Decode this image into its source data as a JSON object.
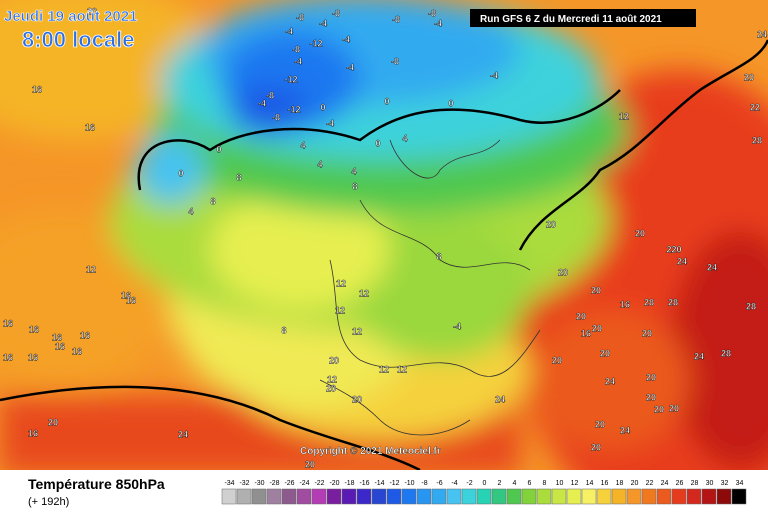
{
  "header": {
    "date": "Jeudi 19 août 2021",
    "time": "8:00 locale",
    "run": "Run GFS 6 Z du Mercredi 11 août 2021"
  },
  "footer": {
    "title": "Température 850hPa",
    "lead": "(+ 192h)",
    "copyright": "Copyright © 2021 Meteociel.fr"
  },
  "legend": {
    "ticks": [
      -34,
      -32,
      -30,
      -28,
      -26,
      -24,
      -22,
      -20,
      -18,
      -16,
      -14,
      -12,
      -10,
      -8,
      -6,
      -4,
      -2,
      0,
      2,
      4,
      6,
      8,
      10,
      12,
      14,
      16,
      18,
      20,
      22,
      24,
      26,
      28,
      30,
      32,
      34
    ],
    "colors": [
      "#d0d0d0",
      "#b0b0b0",
      "#909090",
      "#a080a0",
      "#8c5a8c",
      "#a04ca0",
      "#b43cb4",
      "#7a1ea0",
      "#5a1ab4",
      "#3c28c8",
      "#2846d2",
      "#1e5ae6",
      "#1e78f0",
      "#2896f0",
      "#32aaf0",
      "#46c3f0",
      "#3cd2dc",
      "#28d2b4",
      "#32c882",
      "#50c850",
      "#82d23c",
      "#aadc3c",
      "#c8e646",
      "#e6ef50",
      "#f5f064",
      "#f5d23c",
      "#f5b428",
      "#f59628",
      "#f0781e",
      "#eb5a1e",
      "#e63c1e",
      "#d2281e",
      "#b41414",
      "#8c0a0a",
      "#000000"
    ]
  },
  "map": {
    "contour_labels": [
      20,
      -8,
      -8,
      -4,
      -8,
      -8,
      -4,
      -4,
      -12,
      -4,
      -8,
      -4,
      -4,
      -8,
      -4,
      -12,
      -4,
      -8,
      -12,
      -8,
      0,
      0,
      0,
      -4,
      16,
      16,
      0,
      4,
      4,
      0,
      4,
      4,
      8,
      0,
      8,
      4,
      8,
      12,
      24,
      20,
      22,
      28,
      20,
      20,
      220,
      24,
      24,
      20,
      16,
      16,
      20,
      16,
      28,
      28,
      28,
      12,
      12,
      12,
      12,
      8,
      8,
      12,
      16,
      16,
      16,
      16,
      16,
      16,
      16,
      16,
      -4,
      20,
      20,
      20,
      16,
      20,
      24,
      28,
      20,
      12,
      12,
      12,
      20,
      20,
      24,
      20,
      20,
      20,
      20,
      20,
      24,
      20,
      24,
      16,
      20,
      20,
      20,
      24
    ]
  }
}
